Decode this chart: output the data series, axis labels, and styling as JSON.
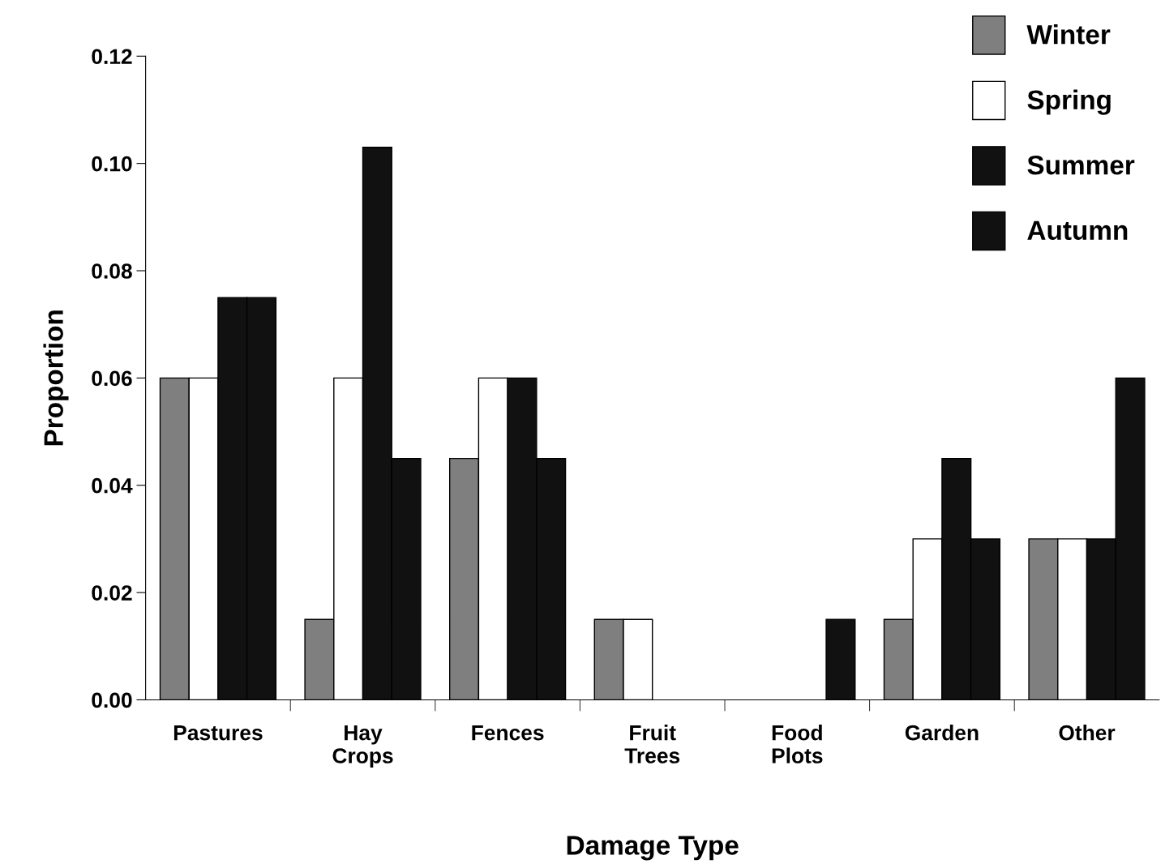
{
  "chart_data": {
    "type": "bar",
    "xlabel": "Damage Type",
    "ylabel": "Proportion",
    "categories": [
      "Pastures",
      "Hay\nCrops",
      "Fences",
      "Fruit\nTrees",
      "Food\nPlots",
      "Garden",
      "Other"
    ],
    "series": [
      {
        "name": "Winter",
        "color": "#7f7f7f",
        "values": [
          0.06,
          0.015,
          0.045,
          0.015,
          0,
          0.015,
          0.03
        ]
      },
      {
        "name": "Spring",
        "color": "#ffffff",
        "values": [
          0.06,
          0.06,
          0.06,
          0.015,
          0,
          0.03,
          0.03
        ]
      },
      {
        "name": "Summer",
        "color": "#111111",
        "values": [
          0.075,
          0.103,
          0.06,
          0,
          0,
          0.045,
          0.03
        ]
      },
      {
        "name": "Autumn",
        "color": "#111111",
        "values": [
          0.075,
          0.045,
          0.045,
          0,
          0.015,
          0.03,
          0.06
        ]
      }
    ],
    "ylim": [
      0,
      0.12
    ],
    "yticks": [
      {
        "value": 0,
        "label": "0.00"
      },
      {
        "value": 0.02,
        "label": "0.02"
      },
      {
        "value": 0.04,
        "label": "0.04"
      },
      {
        "value": 0.06,
        "label": "0.06"
      },
      {
        "value": 0.08,
        "label": "0.08"
      },
      {
        "value": 0.1,
        "label": "0.10"
      },
      {
        "value": 0.12,
        "label": "0.12"
      }
    ],
    "grid": false,
    "legend": "top right"
  }
}
